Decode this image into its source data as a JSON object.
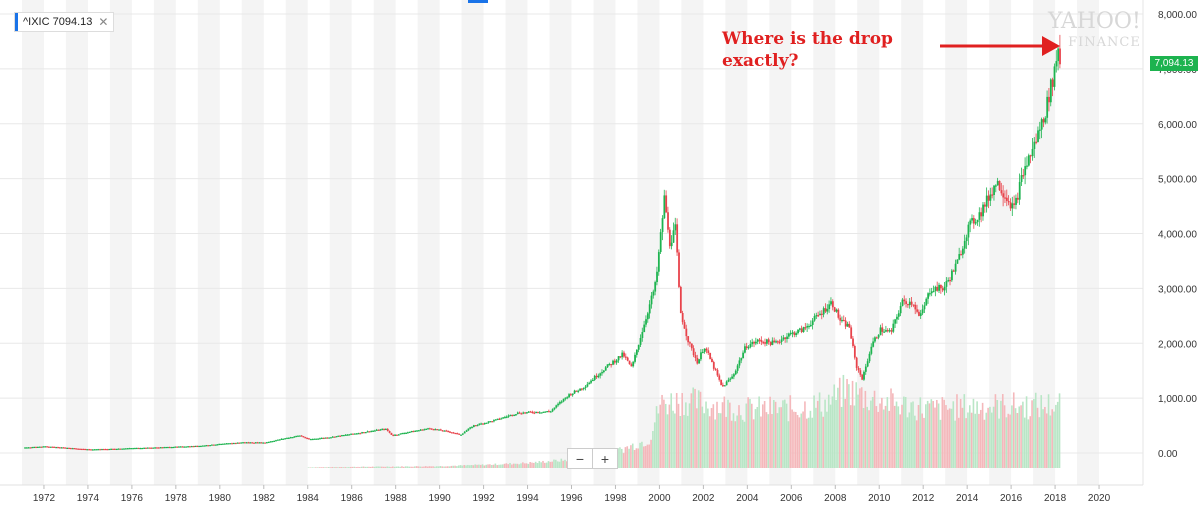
{
  "ticker": {
    "label": "^IXIC 7094.13",
    "close_icon": "close-icon",
    "accent": "#1a73e8"
  },
  "annotation": {
    "line1": "Where is the drop",
    "line2": "exactly?",
    "color": "#e02020"
  },
  "watermark": {
    "line1": "YAHOO!",
    "line2": "FINANCE"
  },
  "price_tag": {
    "label": "7,094.13",
    "color": "#1db34f"
  },
  "zoom": {
    "minus": "−",
    "plus": "+"
  },
  "chart_data": {
    "type": "candlestick",
    "title": "",
    "xlabel": "",
    "ylabel": "",
    "xlim": [
      1970.0,
      2022.0
    ],
    "ylim": [
      -600,
      8000
    ],
    "x_ticks": [
      "1972",
      "1974",
      "1976",
      "1978",
      "1980",
      "1982",
      "1984",
      "1986",
      "1988",
      "1990",
      "1992",
      "1994",
      "1996",
      "1998",
      "2000",
      "2002",
      "2004",
      "2006",
      "2008",
      "2010",
      "2012",
      "2014",
      "2016",
      "2018",
      "2020"
    ],
    "y_ticks": [
      "8,000.00",
      "7,000.00",
      "6,000.00",
      "5,000.00",
      "4,000.00",
      "3,000.00",
      "2,000.00",
      "1,000.00",
      "0.00"
    ],
    "y_tick_values": [
      8000,
      7000,
      6000,
      5000,
      4000,
      3000,
      2000,
      1000,
      0
    ],
    "grid": true,
    "alternating_year_bands": true,
    "up_color": "#1db34f",
    "down_color": "#e8434b",
    "volume_up_color": "#b9e6c6",
    "volume_down_color": "#f4b8bb",
    "price_series": [
      [
        1971.1,
        100
      ],
      [
        1972.0,
        120
      ],
      [
        1973.0,
        95
      ],
      [
        1974.0,
        65
      ],
      [
        1975.0,
        75
      ],
      [
        1976.0,
        90
      ],
      [
        1977.0,
        100
      ],
      [
        1978.0,
        115
      ],
      [
        1979.0,
        130
      ],
      [
        1980.0,
        165
      ],
      [
        1981.0,
        195
      ],
      [
        1982.0,
        190
      ],
      [
        1983.0,
        275
      ],
      [
        1983.6,
        320
      ],
      [
        1984.0,
        250
      ],
      [
        1985.0,
        290
      ],
      [
        1986.0,
        350
      ],
      [
        1987.5,
        440
      ],
      [
        1987.8,
        320
      ],
      [
        1988.5,
        380
      ],
      [
        1989.5,
        450
      ],
      [
        1990.5,
        380
      ],
      [
        1990.9,
        330
      ],
      [
        1991.5,
        500
      ],
      [
        1992.5,
        600
      ],
      [
        1993.5,
        730
      ],
      [
        1994.5,
        750
      ],
      [
        1995.0,
        760
      ],
      [
        1995.8,
        1050
      ],
      [
        1996.5,
        1200
      ],
      [
        1997.5,
        1550
      ],
      [
        1998.3,
        1800
      ],
      [
        1998.7,
        1550
      ],
      [
        1999.3,
        2400
      ],
      [
        1999.8,
        3100
      ],
      [
        2000.2,
        4700
      ],
      [
        2000.4,
        3800
      ],
      [
        2000.7,
        4100
      ],
      [
        2000.9,
        2600
      ],
      [
        2001.3,
        2000
      ],
      [
        2001.7,
        1650
      ],
      [
        2002.0,
        1950
      ],
      [
        2002.5,
        1500
      ],
      [
        2002.8,
        1200
      ],
      [
        2003.3,
        1400
      ],
      [
        2003.9,
        1950
      ],
      [
        2004.5,
        2050
      ],
      [
        2005.2,
        2000
      ],
      [
        2005.8,
        2150
      ],
      [
        2006.5,
        2250
      ],
      [
        2007.3,
        2550
      ],
      [
        2007.8,
        2750
      ],
      [
        2008.2,
        2400
      ],
      [
        2008.6,
        2300
      ],
      [
        2008.9,
        1600
      ],
      [
        2009.2,
        1350
      ],
      [
        2009.6,
        1950
      ],
      [
        2010.0,
        2250
      ],
      [
        2010.5,
        2200
      ],
      [
        2011.0,
        2750
      ],
      [
        2011.5,
        2750
      ],
      [
        2011.8,
        2450
      ],
      [
        2012.3,
        3000
      ],
      [
        2012.9,
        3000
      ],
      [
        2013.5,
        3450
      ],
      [
        2014.0,
        4100
      ],
      [
        2014.6,
        4400
      ],
      [
        2015.3,
        4950
      ],
      [
        2015.7,
        4700
      ],
      [
        2016.1,
        4450
      ],
      [
        2016.5,
        5100
      ],
      [
        2017.0,
        5600
      ],
      [
        2017.5,
        6200
      ],
      [
        2017.9,
        6900
      ],
      [
        2018.1,
        7400
      ],
      [
        2018.2,
        7094
      ]
    ],
    "volume_series": [
      [
        1984.0,
        8
      ],
      [
        1986.0,
        15
      ],
      [
        1988.0,
        20
      ],
      [
        1990.0,
        25
      ],
      [
        1992.0,
        45
      ],
      [
        1994.0,
        70
      ],
      [
        1996.0,
        120
      ],
      [
        1998.0,
        230
      ],
      [
        1999.5,
        400
      ],
      [
        2000.0,
        900
      ],
      [
        2001.0,
        950
      ],
      [
        2002.5,
        880
      ],
      [
        2004.0,
        820
      ],
      [
        2006.0,
        830
      ],
      [
        2007.5,
        900
      ],
      [
        2008.5,
        1100
      ],
      [
        2009.5,
        980
      ],
      [
        2011.0,
        880
      ],
      [
        2012.5,
        820
      ],
      [
        2014.0,
        860
      ],
      [
        2016.0,
        870
      ],
      [
        2017.5,
        870
      ],
      [
        2018.2,
        900
      ]
    ],
    "last_price": 7094.13
  }
}
